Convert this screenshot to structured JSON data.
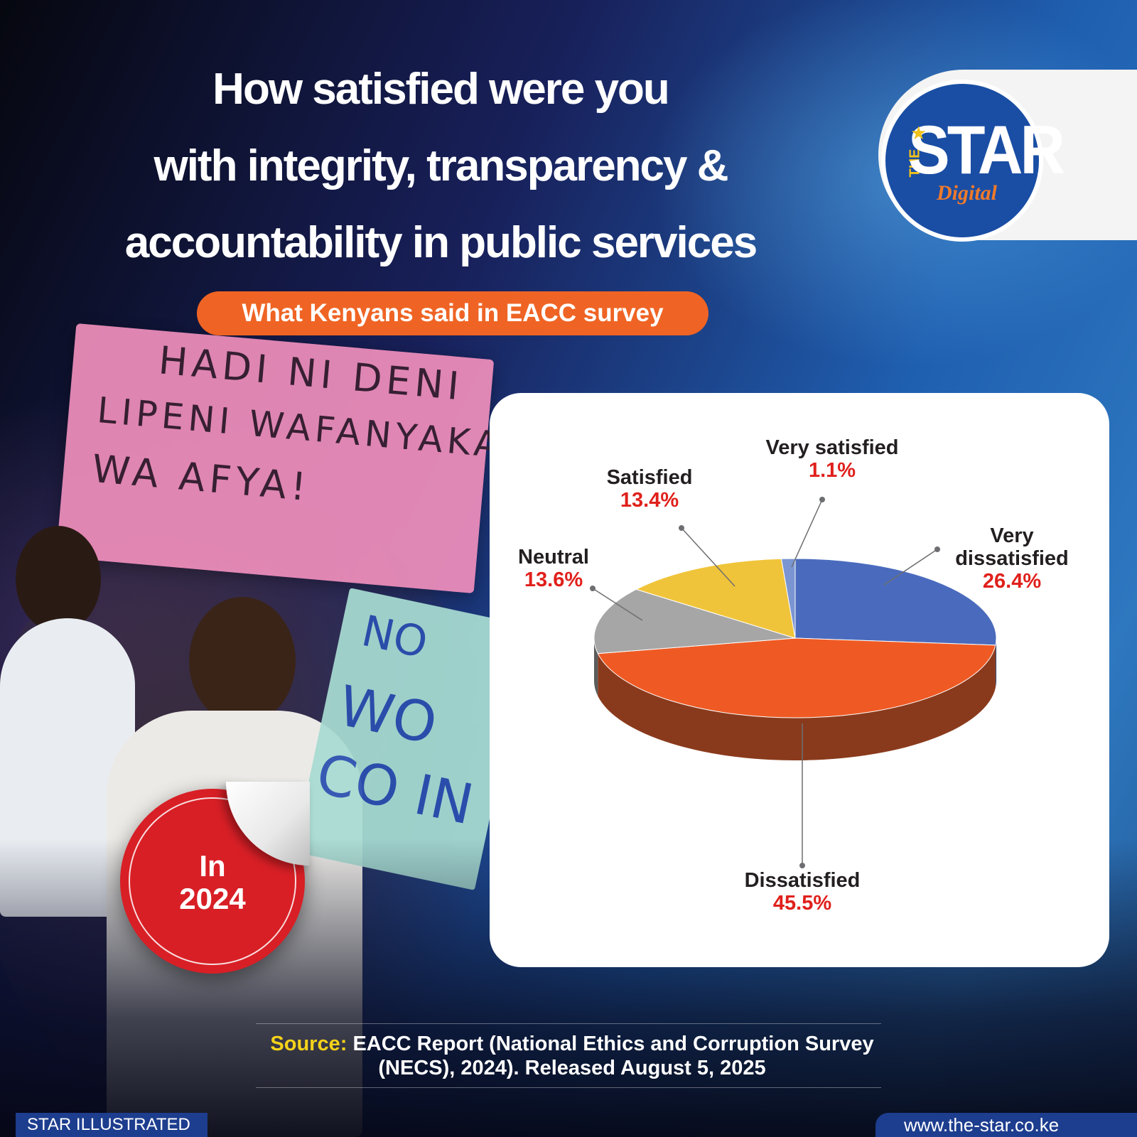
{
  "title_lines": [
    "How satisfied were you",
    "with integrity, transparency &",
    "accountability in public services"
  ],
  "subtitle": "What Kenyans said in EACC survey",
  "logo": {
    "the": "THE",
    "star": "STAR",
    "digital": "Digital"
  },
  "badge": {
    "line1": "In",
    "line2": "2024"
  },
  "source": {
    "label": "Source:",
    "line1": "EACC Report (National Ethics and Corruption Survey",
    "line2": "(NECS), 2024). Released August 5, 2025"
  },
  "footer": {
    "left": "STAR ILLUSTRATED",
    "right": "www.the-star.co.ke"
  },
  "photo_text": {
    "pink_line1": "HADI NI DENI",
    "pink_line2": "LIPENI WAFANYAKAZI",
    "pink_line3": "WA AFYA!",
    "green_line1": "NO",
    "green_line2": "WO",
    "green_line3": "CO IN"
  },
  "colors": {
    "very_dissatisfied": "#4a6bbd",
    "dissatisfied": "#ef5a24",
    "dissatisfied_side": "#8a3a1c",
    "neutral": "#a6a6a6",
    "satisfied": "#f0c43a",
    "very_satisfied": "#7b95d2",
    "value_red": "#e0201b",
    "label_dark": "#231f20"
  },
  "chart_data": {
    "type": "pie",
    "style": "3d",
    "unit": "%",
    "slices": [
      {
        "label": "Very dissatisfied",
        "label_lines": [
          "Very",
          "dissatisfied"
        ],
        "value": 26.4,
        "value_text": "26.4%",
        "color": "#4a6bbd"
      },
      {
        "label": "Dissatisfied",
        "label_lines": [
          "Dissatisfied"
        ],
        "value": 45.5,
        "value_text": "45.5%",
        "color": "#ef5a24"
      },
      {
        "label": "Neutral",
        "label_lines": [
          "Neutral"
        ],
        "value": 13.6,
        "value_text": "13.6%",
        "color": "#a6a6a6"
      },
      {
        "label": "Satisfied",
        "label_lines": [
          "Satisfied"
        ],
        "value": 13.4,
        "value_text": "13.4%",
        "color": "#f0c43a"
      },
      {
        "label": "Very satisfied",
        "label_lines": [
          "Very satisfied"
        ],
        "value": 1.1,
        "value_text": "1.1%",
        "color": "#7b95d2"
      }
    ]
  }
}
